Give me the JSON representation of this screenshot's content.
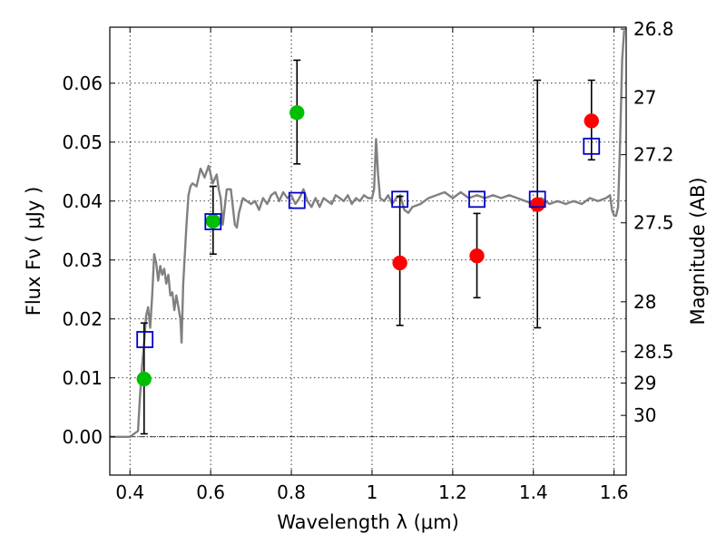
{
  "chart_data": {
    "type": "scatter",
    "title": "",
    "xlabel": "Wavelength  λ (μm)",
    "ylabel": "Flux  Fν  ( μJy )",
    "ylabel_right": "Magnitude (AB)",
    "xlim": [
      0.35,
      1.63
    ],
    "ylim": [
      -0.0065,
      0.0695
    ],
    "grid": true,
    "x_ticks": [
      {
        "value": 0.4,
        "label": "0.4"
      },
      {
        "value": 0.6,
        "label": "0.6"
      },
      {
        "value": 0.8,
        "label": "0.8"
      },
      {
        "value": 1.0,
        "label": "1"
      },
      {
        "value": 1.2,
        "label": "1.2"
      },
      {
        "value": 1.4,
        "label": "1.4"
      },
      {
        "value": 1.6,
        "label": "1.6"
      }
    ],
    "y_ticks": [
      {
        "value": 0.0,
        "label": "0.00"
      },
      {
        "value": 0.01,
        "label": "0.01"
      },
      {
        "value": 0.02,
        "label": "0.02"
      },
      {
        "value": 0.03,
        "label": "0.03"
      },
      {
        "value": 0.04,
        "label": "0.04"
      },
      {
        "value": 0.05,
        "label": "0.05"
      },
      {
        "value": 0.06,
        "label": "0.06"
      }
    ],
    "right_ticks": [
      {
        "mag": 26.8,
        "label": "26.8"
      },
      {
        "mag": 27.0,
        "label": "27"
      },
      {
        "mag": 27.2,
        "label": "27.2"
      },
      {
        "mag": 27.5,
        "label": "27.5"
      },
      {
        "mag": 28.0,
        "label": "28"
      },
      {
        "mag": 28.5,
        "label": "28.5"
      },
      {
        "mag": 29.0,
        "label": "29"
      },
      {
        "mag": 30.0,
        "label": "30"
      }
    ],
    "series": [
      {
        "kind": "line",
        "color": "#808080",
        "points": [
          [
            0.35,
            0.0
          ],
          [
            0.4,
            0.0
          ],
          [
            0.42,
            0.001
          ],
          [
            0.425,
            0.007
          ],
          [
            0.43,
            0.012
          ],
          [
            0.435,
            0.016
          ],
          [
            0.44,
            0.0205
          ],
          [
            0.445,
            0.022
          ],
          [
            0.45,
            0.0185
          ],
          [
            0.455,
            0.024
          ],
          [
            0.46,
            0.031
          ],
          [
            0.465,
            0.0295
          ],
          [
            0.47,
            0.0265
          ],
          [
            0.475,
            0.029
          ],
          [
            0.48,
            0.0275
          ],
          [
            0.485,
            0.0285
          ],
          [
            0.49,
            0.026
          ],
          [
            0.495,
            0.0275
          ],
          [
            0.5,
            0.024
          ],
          [
            0.505,
            0.0245
          ],
          [
            0.51,
            0.0215
          ],
          [
            0.515,
            0.024
          ],
          [
            0.52,
            0.022
          ],
          [
            0.525,
            0.02
          ],
          [
            0.528,
            0.016
          ],
          [
            0.532,
            0.026
          ],
          [
            0.54,
            0.036
          ],
          [
            0.545,
            0.041
          ],
          [
            0.55,
            0.0425
          ],
          [
            0.555,
            0.043
          ],
          [
            0.565,
            0.0425
          ],
          [
            0.575,
            0.0455
          ],
          [
            0.585,
            0.044
          ],
          [
            0.595,
            0.046
          ],
          [
            0.605,
            0.043
          ],
          [
            0.615,
            0.0445
          ],
          [
            0.62,
            0.042
          ],
          [
            0.625,
            0.0405
          ],
          [
            0.63,
            0.036
          ],
          [
            0.635,
            0.039
          ],
          [
            0.64,
            0.042
          ],
          [
            0.65,
            0.042
          ],
          [
            0.655,
            0.039
          ],
          [
            0.66,
            0.036
          ],
          [
            0.665,
            0.0355
          ],
          [
            0.67,
            0.038
          ],
          [
            0.68,
            0.0405
          ],
          [
            0.69,
            0.04
          ],
          [
            0.7,
            0.0395
          ],
          [
            0.71,
            0.04
          ],
          [
            0.72,
            0.0385
          ],
          [
            0.73,
            0.0405
          ],
          [
            0.74,
            0.0395
          ],
          [
            0.75,
            0.041
          ],
          [
            0.76,
            0.0415
          ],
          [
            0.77,
            0.04
          ],
          [
            0.78,
            0.0415
          ],
          [
            0.79,
            0.0405
          ],
          [
            0.8,
            0.041
          ],
          [
            0.81,
            0.0395
          ],
          [
            0.82,
            0.0405
          ],
          [
            0.83,
            0.042
          ],
          [
            0.84,
            0.04
          ],
          [
            0.85,
            0.039
          ],
          [
            0.86,
            0.0405
          ],
          [
            0.87,
            0.039
          ],
          [
            0.88,
            0.0405
          ],
          [
            0.89,
            0.04
          ],
          [
            0.9,
            0.0395
          ],
          [
            0.91,
            0.041
          ],
          [
            0.92,
            0.0405
          ],
          [
            0.93,
            0.04
          ],
          [
            0.94,
            0.041
          ],
          [
            0.95,
            0.0395
          ],
          [
            0.96,
            0.0405
          ],
          [
            0.97,
            0.04
          ],
          [
            0.98,
            0.041
          ],
          [
            0.99,
            0.0405
          ],
          [
            1.0,
            0.0405
          ],
          [
            1.005,
            0.042
          ],
          [
            1.01,
            0.0505
          ],
          [
            1.015,
            0.0445
          ],
          [
            1.02,
            0.0405
          ],
          [
            1.03,
            0.04
          ],
          [
            1.04,
            0.041
          ],
          [
            1.05,
            0.0395
          ],
          [
            1.06,
            0.0405
          ],
          [
            1.07,
            0.041
          ],
          [
            1.08,
            0.0385
          ],
          [
            1.09,
            0.038
          ],
          [
            1.1,
            0.039
          ],
          [
            1.12,
            0.0395
          ],
          [
            1.14,
            0.0405
          ],
          [
            1.16,
            0.041
          ],
          [
            1.18,
            0.0415
          ],
          [
            1.2,
            0.0405
          ],
          [
            1.22,
            0.0415
          ],
          [
            1.24,
            0.0405
          ],
          [
            1.26,
            0.041
          ],
          [
            1.28,
            0.0405
          ],
          [
            1.3,
            0.041
          ],
          [
            1.32,
            0.0405
          ],
          [
            1.34,
            0.041
          ],
          [
            1.36,
            0.0405
          ],
          [
            1.38,
            0.04
          ],
          [
            1.4,
            0.0395
          ],
          [
            1.42,
            0.0405
          ],
          [
            1.44,
            0.0395
          ],
          [
            1.46,
            0.04
          ],
          [
            1.48,
            0.0395
          ],
          [
            1.5,
            0.04
          ],
          [
            1.52,
            0.0395
          ],
          [
            1.54,
            0.0405
          ],
          [
            1.56,
            0.04
          ],
          [
            1.58,
            0.0405
          ],
          [
            1.59,
            0.041
          ],
          [
            1.595,
            0.0385
          ],
          [
            1.6,
            0.0375
          ],
          [
            1.605,
            0.0375
          ],
          [
            1.61,
            0.039
          ],
          [
            1.615,
            0.05
          ],
          [
            1.62,
            0.064
          ],
          [
            1.625,
            0.069
          ]
        ]
      },
      {
        "kind": "points",
        "marker": "circle",
        "color": "#00bf00",
        "points": [
          {
            "x": 0.435,
            "y": 0.0098,
            "ylo": 0.0005,
            "yhi": 0.0193
          },
          {
            "x": 0.606,
            "y": 0.0366,
            "ylo": 0.031,
            "yhi": 0.0425
          },
          {
            "x": 0.814,
            "y": 0.055,
            "ylo": 0.0463,
            "yhi": 0.0639
          }
        ]
      },
      {
        "kind": "points",
        "marker": "circle",
        "color": "#ff0000",
        "points": [
          {
            "x": 1.069,
            "y": 0.0295,
            "ylo": 0.0189,
            "yhi": 0.0408
          },
          {
            "x": 1.26,
            "y": 0.0307,
            "ylo": 0.0236,
            "yhi": 0.0379
          },
          {
            "x": 1.41,
            "y": 0.0394,
            "ylo": 0.0185,
            "yhi": 0.0605
          },
          {
            "x": 1.544,
            "y": 0.0536,
            "ylo": 0.047,
            "yhi": 0.0605
          }
        ]
      },
      {
        "kind": "points",
        "marker": "square",
        "color": "#0000cc",
        "points": [
          {
            "x": 0.437,
            "y": 0.0165
          },
          {
            "x": 0.606,
            "y": 0.0365
          },
          {
            "x": 0.814,
            "y": 0.0401
          },
          {
            "x": 1.069,
            "y": 0.0403
          },
          {
            "x": 1.26,
            "y": 0.0403
          },
          {
            "x": 1.41,
            "y": 0.0403
          },
          {
            "x": 1.544,
            "y": 0.0493
          }
        ]
      }
    ]
  }
}
